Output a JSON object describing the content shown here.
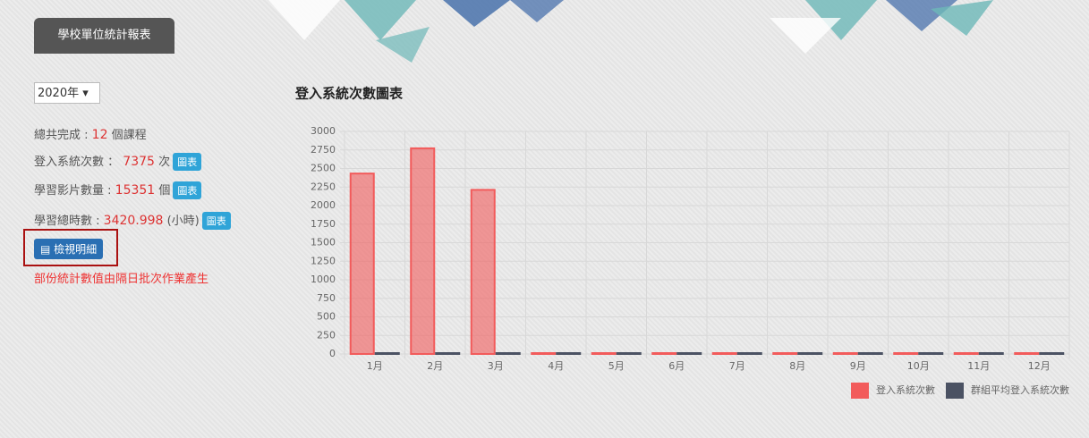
{
  "header": {
    "title": "學校單位統計報表"
  },
  "sidebar": {
    "year": "2020年",
    "stats": [
      {
        "label": "總共完成 :",
        "value": 12,
        "unit": "個課程"
      },
      {
        "label": "登入系統次數 ：",
        "value": 7375,
        "unit": "次",
        "button": "圖表"
      },
      {
        "label": "學習影片數量 :",
        "value": 15351,
        "unit": "個",
        "button": "圖表"
      },
      {
        "label": "學習總時數 :",
        "value": 3420.998,
        "unit": "(小時)",
        "button": "圖表"
      }
    ],
    "detail_button": "檢視明細",
    "note": "部份統計數值由隔日批次作業產生"
  },
  "chart_data": {
    "type": "bar",
    "title": "登入系統次數圖表",
    "categories": [
      "1月",
      "2月",
      "3月",
      "4月",
      "5月",
      "6月",
      "7月",
      "8月",
      "9月",
      "10月",
      "11月",
      "12月"
    ],
    "series": [
      {
        "name": "登入系統次數",
        "color": "#f25b5b",
        "values": [
          2420,
          2760,
          2200,
          0,
          0,
          0,
          0,
          0,
          0,
          0,
          0,
          0
        ]
      },
      {
        "name": "群組平均登入系統次數",
        "color": "#4b5263",
        "values": [
          0,
          0,
          0,
          0,
          0,
          0,
          0,
          0,
          0,
          0,
          0,
          0
        ]
      }
    ],
    "ylim": [
      0,
      3000
    ],
    "yticks": [
      0,
      250,
      500,
      750,
      1000,
      1250,
      1500,
      1750,
      2000,
      2250,
      2500,
      2750,
      3000
    ],
    "grid": true,
    "legend": "bottom-right"
  }
}
